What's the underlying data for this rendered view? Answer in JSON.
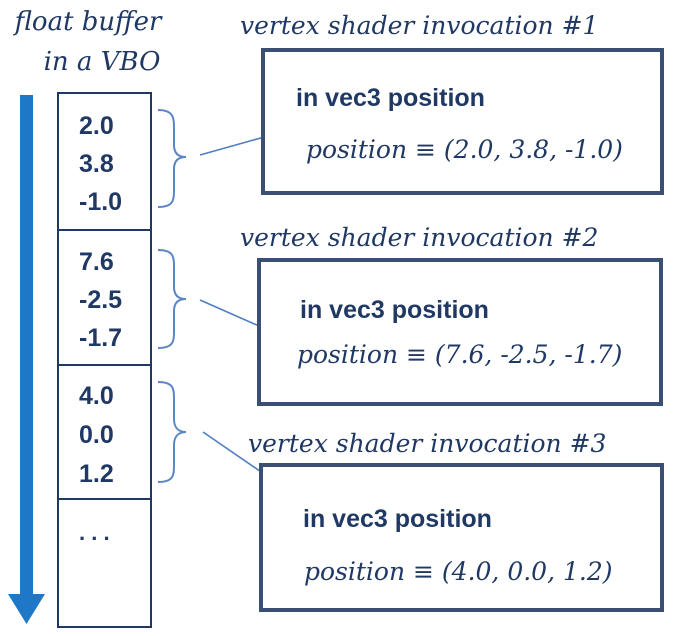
{
  "buffer": {
    "title_line1": "float buffer",
    "title_line2": "in a VBO",
    "cells": [
      [
        "2.0",
        "3.8",
        "-1.0"
      ],
      [
        "7.6",
        "-2.5",
        "-1.7"
      ],
      [
        "4.0",
        "0.0",
        "1.2"
      ]
    ],
    "ellipsis": ". . ."
  },
  "invocations": [
    {
      "title": "vertex shader invocation #1",
      "declaration": "in vec3 position",
      "assignment": "position ≡ (2.0, 3.8, -1.0)"
    },
    {
      "title": "vertex shader invocation #2",
      "declaration": "in vec3 position",
      "assignment": "position ≡ (7.6, -2.5, -1.7)"
    },
    {
      "title": "vertex shader invocation #3",
      "declaration": "in vec3 position",
      "assignment": "position ≡ (4.0, 0.0, 1.2)"
    }
  ],
  "colors": {
    "text": "#1f3864",
    "box_border": "#3b4f75",
    "arrow": "#4f7fc0",
    "flow_arrow": "#1f77c8"
  }
}
